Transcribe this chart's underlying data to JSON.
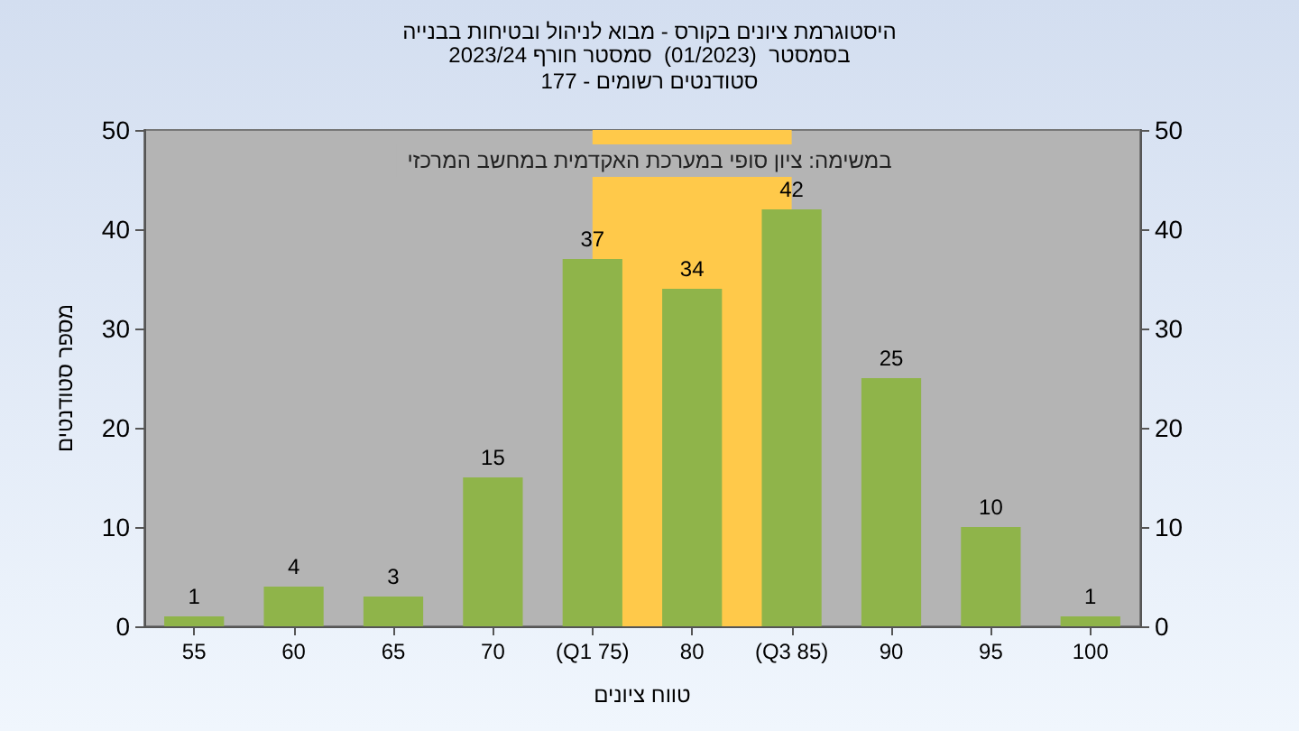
{
  "chart_data": {
    "type": "bar",
    "title": "היסטוגרמת ציונים בקורס - מבוא לניהול ובטיחות בבנייה\nבסמסטר  (01/2023)  סמסטר חורף 2023/24",
    "subtitle": "סטודנטים רשומים - 177",
    "annotations": [
      "במשימה: ציון סופי במערכת האקדמית במחשב המרכזי"
    ],
    "xlabel": "טווח ציונים",
    "ylabel": "מספר סטודנטים",
    "categories": [
      "55",
      "60",
      "65",
      "70",
      "(Q1 75)",
      "80",
      "(Q3 85)",
      "90",
      "95",
      "100"
    ],
    "values": [
      1,
      4,
      3,
      15,
      37,
      34,
      42,
      25,
      10,
      1
    ],
    "color": "#8fb44a",
    "ylim": [
      0,
      50
    ],
    "yticks": [
      0,
      10,
      20,
      30,
      40,
      50
    ],
    "y2lim": [
      0,
      50
    ],
    "y2ticks": [
      0,
      10,
      20,
      30,
      40,
      50
    ],
    "bands": [
      {
        "axis": "x",
        "from": "(Q1 75)",
        "to": "(Q3 85)",
        "color": "#ffc94a"
      }
    ],
    "data_labels": true,
    "grid": false
  }
}
